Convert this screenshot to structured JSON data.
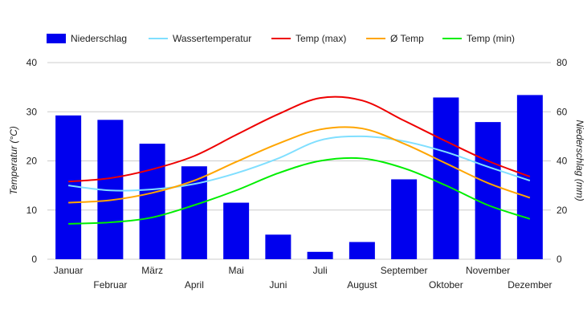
{
  "chart_data": {
    "type": "bar",
    "categories": [
      "Januar",
      "Februar",
      "März",
      "April",
      "Mai",
      "Juni",
      "Juli",
      "August",
      "September",
      "Oktober",
      "November",
      "Dezember"
    ],
    "series": [
      {
        "name": "Niederschlag",
        "kind": "bar",
        "axis": "right",
        "color": "#0000ee",
        "values": [
          58.5,
          56.7,
          47,
          37.8,
          23,
          10,
          3,
          7,
          32.5,
          65.8,
          55.8,
          66.8
        ]
      },
      {
        "name": "Wassertemperatur",
        "kind": "line",
        "axis": "left",
        "color": "#80dfff",
        "values": [
          15,
          14,
          14.2,
          15.3,
          17.5,
          20.5,
          24.2,
          25,
          24,
          21.8,
          18.8,
          16
        ]
      },
      {
        "name": "Temp (max)",
        "kind": "line",
        "axis": "left",
        "color": "#ee0000",
        "values": [
          15.8,
          16.5,
          18.3,
          21,
          25.3,
          29.5,
          32.8,
          32.3,
          28.2,
          24,
          20,
          16.8
        ]
      },
      {
        "name": "Ø Temp",
        "kind": "line",
        "axis": "left",
        "color": "#ffa500",
        "values": [
          11.5,
          12,
          13.5,
          16,
          19.8,
          23.5,
          26.4,
          26.6,
          23.5,
          19.5,
          15.5,
          12.5
        ]
      },
      {
        "name": "Temp (min)",
        "kind": "line",
        "axis": "left",
        "color": "#00ee00",
        "values": [
          7.2,
          7.5,
          8.5,
          11,
          14,
          17.5,
          20,
          20.5,
          18.5,
          15,
          11,
          8.2
        ]
      }
    ],
    "ylabel": "Temperatur (°C)",
    "y2label": "Niederschlag (mm)",
    "ylim": [
      0,
      40
    ],
    "y2lim": [
      0,
      80
    ],
    "yticks": [
      "0",
      "10",
      "20",
      "30",
      "40"
    ],
    "y2ticks": [
      "0",
      "20",
      "40",
      "60",
      "80"
    ],
    "grid": true,
    "legend_position": "top"
  }
}
